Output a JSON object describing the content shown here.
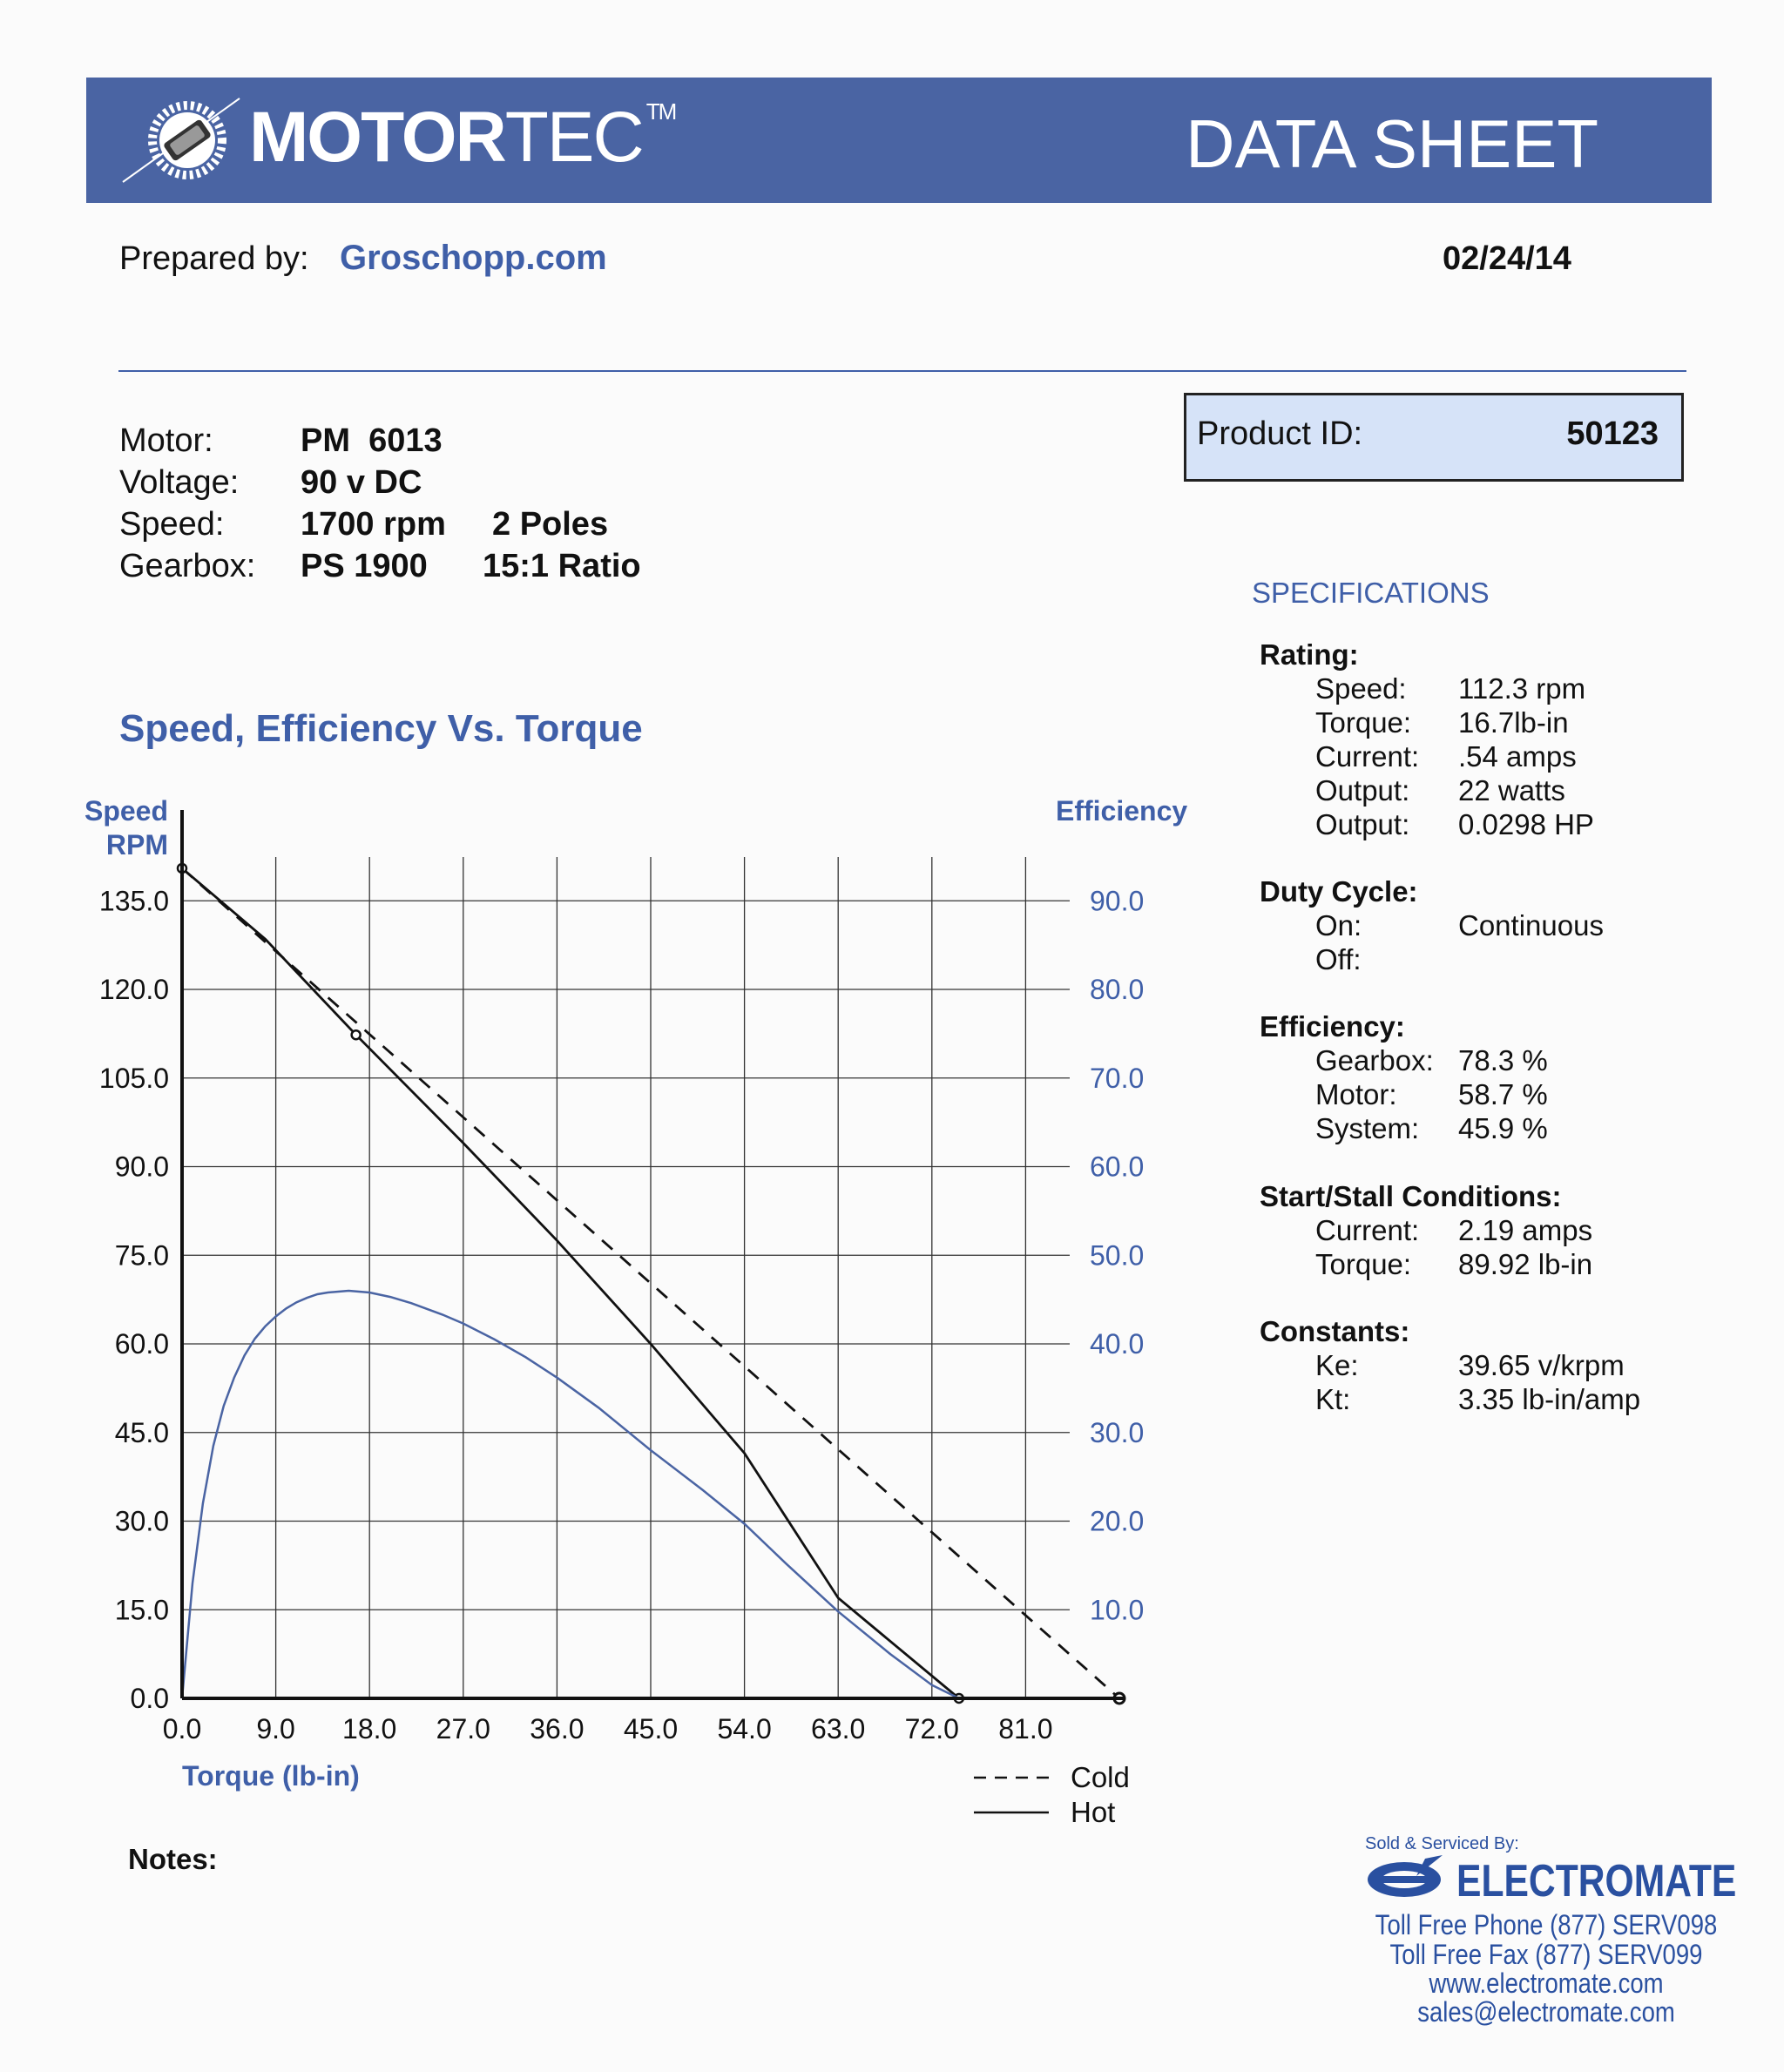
{
  "header": {
    "brand_bold": "MOTOR",
    "brand_light": "TEC",
    "trademark": "TM",
    "doc_title": "DATA SHEET"
  },
  "prepared": {
    "label": "Prepared by:",
    "value": "Groschopp.com",
    "date": "02/24/14"
  },
  "motor_info": {
    "motor_label": "Motor:",
    "motor_value": "PM  6013",
    "voltage_label": "Voltage:",
    "voltage_value": "90 v DC",
    "speed_label": "Speed:",
    "speed_value": "1700 rpm",
    "poles_value": "2 Poles",
    "gearbox_label": "Gearbox:",
    "gearbox_value": "PS 1900",
    "ratio_value": "15:1 Ratio"
  },
  "product": {
    "label": "Product ID:",
    "value": "50123"
  },
  "specs": {
    "title": "SPECIFICATIONS",
    "rating": {
      "heading": "Rating:",
      "rows": [
        {
          "label": "Speed:",
          "value": "112.3 rpm"
        },
        {
          "label": "Torque:",
          "value": "16.7lb-in"
        },
        {
          "label": "Current:",
          "value": ".54 amps"
        },
        {
          "label": "Output:",
          "value": "22 watts"
        },
        {
          "label": "Output:",
          "value": "0.0298 HP"
        }
      ]
    },
    "duty": {
      "heading": "Duty Cycle:",
      "rows": [
        {
          "label": "On:",
          "value": "Continuous"
        },
        {
          "label": "Off:",
          "value": ""
        }
      ]
    },
    "efficiency": {
      "heading": "Efficiency:",
      "rows": [
        {
          "label": "Gearbox:",
          "value": "78.3 %"
        },
        {
          "label": "Motor:",
          "value": "58.7 %"
        },
        {
          "label": "System:",
          "value": "45.9 %"
        }
      ]
    },
    "stall": {
      "heading": "Start/Stall Conditions:",
      "rows": [
        {
          "label": "Current:",
          "value": "2.19 amps"
        },
        {
          "label": "Torque:",
          "value": "89.92 lb-in"
        }
      ]
    },
    "constants": {
      "heading": "Constants:",
      "rows": [
        {
          "label": "Ke:",
          "value": "39.65 v/krpm"
        },
        {
          "label": "Kt:",
          "value": "3.35 lb-in/amp"
        }
      ]
    }
  },
  "chart_data": {
    "type": "line",
    "title": "Speed, Efficiency Vs. Torque",
    "xlabel": "Torque  (lb-in)",
    "ylabel_left": [
      "Speed",
      "RPM"
    ],
    "ylabel_right": "Efficiency",
    "xlim": [
      0,
      90
    ],
    "ylim_left": [
      0,
      135
    ],
    "ylim_right": [
      0,
      90
    ],
    "x_ticks": [
      "0.0",
      "9.0",
      "18.0",
      "27.0",
      "36.0",
      "45.0",
      "54.0",
      "63.0",
      "72.0",
      "81.0"
    ],
    "y_ticks_left": [
      "0.0",
      "15.0",
      "30.0",
      "45.0",
      "60.0",
      "75.0",
      "90.0",
      "105.0",
      "120.0",
      "135.0"
    ],
    "y_ticks_right": [
      "10.0",
      "20.0",
      "30.0",
      "40.0",
      "50.0",
      "60.0",
      "70.0",
      "80.0",
      "90.0"
    ],
    "grid": true,
    "series": [
      {
        "name": "Cold",
        "axis": "left",
        "style": "dashed",
        "color": "#111111",
        "points": [
          [
            0,
            140.5
          ],
          [
            90,
            0
          ]
        ]
      },
      {
        "name": "Hot",
        "axis": "left",
        "style": "solid",
        "color": "#111111",
        "points": [
          [
            0,
            140.5
          ],
          [
            8,
            128.5
          ],
          [
            16.7,
            112.3
          ],
          [
            27,
            94
          ],
          [
            36,
            77.5
          ],
          [
            45,
            60
          ],
          [
            54,
            41.5
          ],
          [
            63,
            17
          ],
          [
            74.6,
            0
          ]
        ],
        "markers": [
          [
            0,
            140.5
          ],
          [
            16.7,
            112.3
          ],
          [
            74.6,
            0
          ]
        ]
      },
      {
        "name": "Efficiency",
        "axis": "right",
        "style": "solid",
        "color": "#4a64a3",
        "points": [
          [
            0,
            0
          ],
          [
            1,
            13
          ],
          [
            2,
            22
          ],
          [
            3,
            28.5
          ],
          [
            4,
            33
          ],
          [
            5,
            36.2
          ],
          [
            6,
            38.7
          ],
          [
            7,
            40.6
          ],
          [
            8,
            42
          ],
          [
            9,
            43.1
          ],
          [
            10,
            44
          ],
          [
            11,
            44.7
          ],
          [
            12,
            45.2
          ],
          [
            13,
            45.6
          ],
          [
            14,
            45.8
          ],
          [
            15,
            45.9
          ],
          [
            16,
            46
          ],
          [
            17,
            45.9
          ],
          [
            18,
            45.8
          ],
          [
            20,
            45.3
          ],
          [
            22,
            44.6
          ],
          [
            25,
            43.3
          ],
          [
            27,
            42.3
          ],
          [
            30,
            40.5
          ],
          [
            33,
            38.5
          ],
          [
            36,
            36.2
          ],
          [
            40,
            32.8
          ],
          [
            45,
            28
          ],
          [
            50,
            23.5
          ],
          [
            54,
            19.7
          ],
          [
            58,
            15.2
          ],
          [
            63,
            9.8
          ],
          [
            68,
            5
          ],
          [
            72,
            1.5
          ],
          [
            74.6,
            0
          ]
        ]
      }
    ],
    "legend": {
      "placement": "bottom-right",
      "entries": [
        {
          "name": "Cold",
          "style": "dashed"
        },
        {
          "name": "Hot",
          "style": "solid"
        }
      ]
    }
  },
  "notes_label": "Notes:",
  "footer": {
    "sold_by": "Sold & Serviced By:",
    "company": "ELECTROMATE",
    "phone": "Toll Free Phone  (877) SERV098",
    "fax": "Toll Free Fax  (877) SERV099",
    "web": "www.electromate.com",
    "email": "sales@electromate.com"
  },
  "colors": {
    "banner": "#4a64a3",
    "accent": "#3f5fa8",
    "product_box": "#d6e3f8"
  }
}
